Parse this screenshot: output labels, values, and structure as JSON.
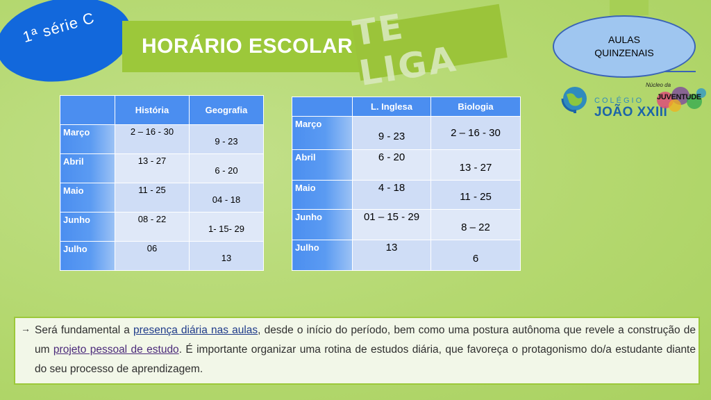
{
  "badge": {
    "label": "1ª série C"
  },
  "title": {
    "text": "HORÁRIO ESCOLAR",
    "stamp": "TE LIGA"
  },
  "callout": {
    "line1": "AULAS",
    "line2": "QUINZENAIS"
  },
  "logo": {
    "small": "COLÉGIO",
    "name": "JOÃO XXIII",
    "tag_top": "Núcleo da",
    "tag": "JUVENTUDE"
  },
  "table1": {
    "headers": [
      "",
      "História",
      "Geografia"
    ],
    "rows": [
      {
        "month": "Março",
        "c1": "2 – 16 - 30",
        "c2": "9 - 23"
      },
      {
        "month": "Abril",
        "c1": "13 - 27",
        "c2": "6 - 20"
      },
      {
        "month": "Maio",
        "c1": "11 - 25",
        "c2": "04 - 18"
      },
      {
        "month": "Junho",
        "c1": "08 - 22",
        "c2": "1- 15- 29"
      },
      {
        "month": "Julho",
        "c1": "06",
        "c2": "13"
      }
    ]
  },
  "table2": {
    "headers": [
      "",
      "L. Inglesa",
      "Biologia"
    ],
    "rows": [
      {
        "month": "Março",
        "c1": "9 - 23",
        "c2": "2 – 16 - 30"
      },
      {
        "month": "Abril",
        "c1": "6 - 20",
        "c2": "13 - 27"
      },
      {
        "month": "Maio",
        "c1": "4 - 18",
        "c2": "11 - 25"
      },
      {
        "month": "Junho",
        "c1": "01 – 15 - 29",
        "c2": "8 – 22"
      },
      {
        "month": "Julho",
        "c1": "13",
        "c2": "6"
      }
    ]
  },
  "note": {
    "arrow": "→",
    "p1": "Será fundamental a ",
    "h1": "presença diária nas aulas",
    "p2": ", desde o início do período, bem como uma postura autônoma que revele a construção de um ",
    "h2": "projeto pessoal de estudo",
    "p3": ". É importante organizar uma rotina de estudos diária, que favoreça o protagonismo do/a estudante diante do seu processo de aprendizagem."
  },
  "colors": {
    "background": "#b4d86f",
    "title_bar": "#9cc83a",
    "badge": "#1268dc",
    "table_header": "#4b8ef0",
    "table_cell": "#cfddf6",
    "callout": "#9fc6f0"
  },
  "icons": [
    "globe-icon"
  ]
}
